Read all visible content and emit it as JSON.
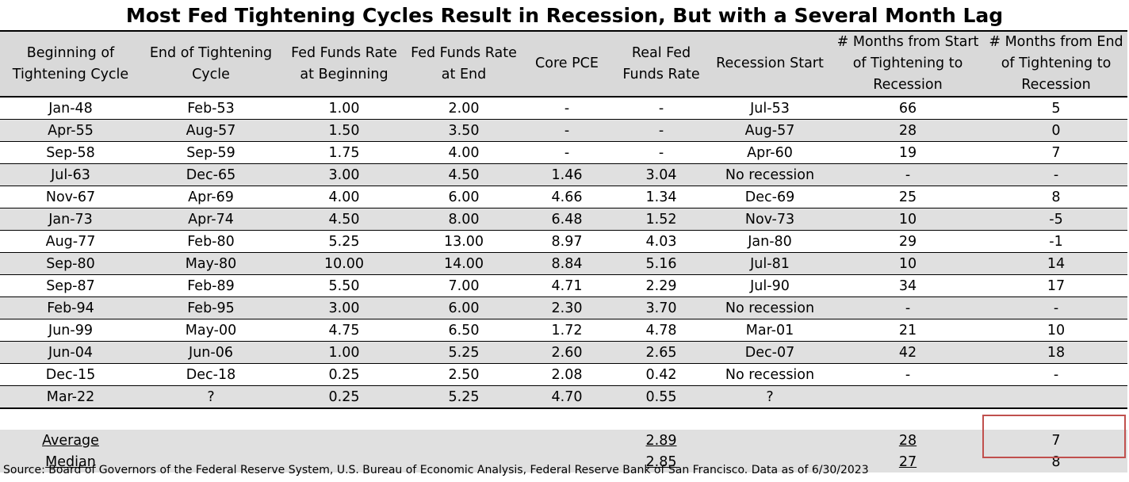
{
  "title": "Most Fed Tightening Cycles Result in Recession, But with a Several Month Lag",
  "columns": [
    "Beginning of Tightening Cycle",
    "End of Tightening Cycle",
    "Fed Funds Rate at Beginning",
    "Fed Funds Rate at End",
    "Core PCE",
    "Real Fed Funds Rate",
    "Recession Start",
    "# Months from Start of Tightening to Recession",
    "# Months from End of Tightening to Recession"
  ],
  "chart_data": {
    "type": "table",
    "title": "Most Fed Tightening Cycles Result in Recession, But with a Several Month Lag",
    "columns": [
      "Beginning of Tightening Cycle",
      "End of Tightening Cycle",
      "Fed Funds Rate at Beginning",
      "Fed Funds Rate at End",
      "Core PCE",
      "Real Fed Funds Rate",
      "Recession Start",
      "# Months from Start of Tightening to Recession",
      "# Months from End of Tightening to Recession"
    ],
    "rows": [
      [
        "Jan-48",
        "Feb-53",
        "1.00",
        "2.00",
        "-",
        "-",
        "Jul-53",
        "66",
        "5"
      ],
      [
        "Apr-55",
        "Aug-57",
        "1.50",
        "3.50",
        "-",
        "-",
        "Aug-57",
        "28",
        "0"
      ],
      [
        "Sep-58",
        "Sep-59",
        "1.75",
        "4.00",
        "-",
        "-",
        "Apr-60",
        "19",
        "7"
      ],
      [
        "Jul-63",
        "Dec-65",
        "3.00",
        "4.50",
        "1.46",
        "3.04",
        "No recession",
        "-",
        "-"
      ],
      [
        "Nov-67",
        "Apr-69",
        "4.00",
        "6.00",
        "4.66",
        "1.34",
        "Dec-69",
        "25",
        "8"
      ],
      [
        "Jan-73",
        "Apr-74",
        "4.50",
        "8.00",
        "6.48",
        "1.52",
        "Nov-73",
        "10",
        "-5"
      ],
      [
        "Aug-77",
        "Feb-80",
        "5.25",
        "13.00",
        "8.97",
        "4.03",
        "Jan-80",
        "29",
        "-1"
      ],
      [
        "Sep-80",
        "May-80",
        "10.00",
        "14.00",
        "8.84",
        "5.16",
        "Jul-81",
        "10",
        "14"
      ],
      [
        "Sep-87",
        "Feb-89",
        "5.50",
        "7.00",
        "4.71",
        "2.29",
        "Jul-90",
        "34",
        "17"
      ],
      [
        "Feb-94",
        "Feb-95",
        "3.00",
        "6.00",
        "2.30",
        "3.70",
        "No recession",
        "-",
        "-"
      ],
      [
        "Jun-99",
        "May-00",
        "4.75",
        "6.50",
        "1.72",
        "4.78",
        "Mar-01",
        "21",
        "10"
      ],
      [
        "Jun-04",
        "Jun-06",
        "1.00",
        "5.25",
        "2.60",
        "2.65",
        "Dec-07",
        "42",
        "18"
      ],
      [
        "Dec-15",
        "Dec-18",
        "0.25",
        "2.50",
        "2.08",
        "0.42",
        "No recession",
        "-",
        "-"
      ],
      [
        "Mar-22",
        "?",
        "0.25",
        "5.25",
        "4.70",
        "0.55",
        "?",
        "",
        ""
      ]
    ],
    "summary": [
      {
        "label": "Average",
        "real_fed_funds_rate": "2.89",
        "months_from_start": "28",
        "months_from_end": "7"
      },
      {
        "label": "Median",
        "real_fed_funds_rate": "2.85",
        "months_from_start": "27",
        "months_from_end": "8"
      }
    ],
    "highlight_color": "#c0504d",
    "header_color": "#d9d9d9",
    "stripe_color": "#e0e0e0"
  },
  "source": "Source: Board of Governors of the Federal Reserve System, U.S. Bureau of Economic Analysis, Federal Reserve Bank of San Francisco. Data as of 6/30/2023"
}
